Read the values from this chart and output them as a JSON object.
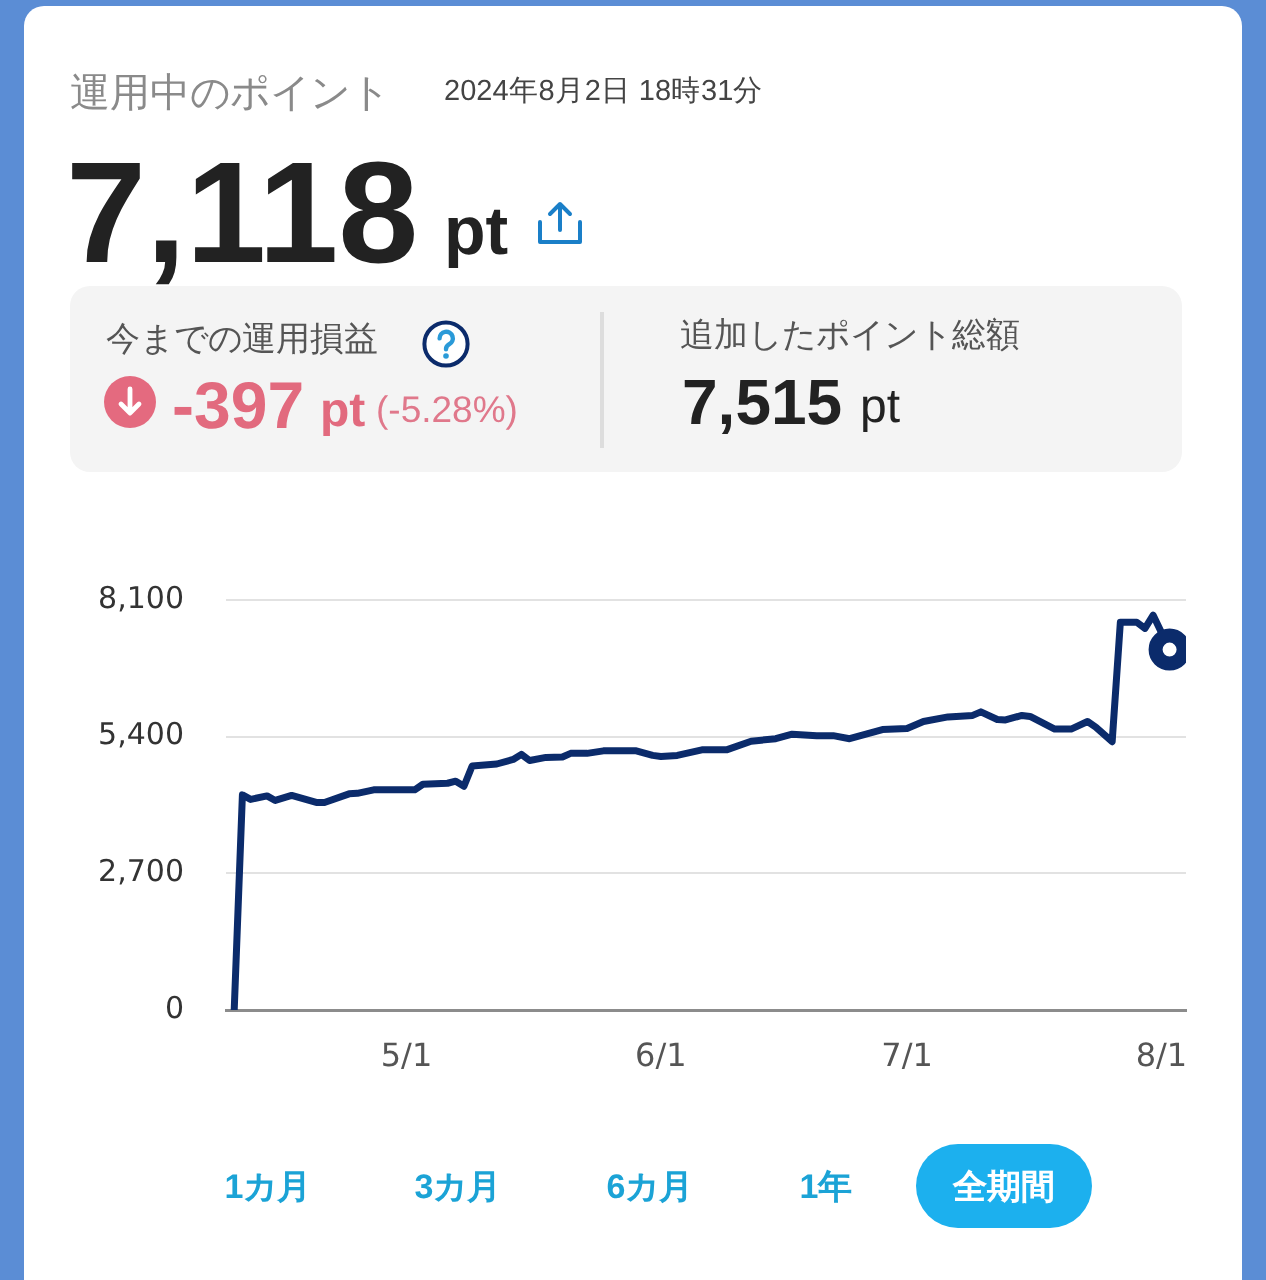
{
  "chart_data": {
    "type": "line",
    "title": "運用中のポイント",
    "subtitle": "2024年8月2日 18時31分",
    "annotations": [
      "7,118",
      "pt",
      "今までの運用損益",
      "-397",
      "pt",
      "(-5.28%)",
      "追加したポイント総額",
      "7,515",
      "pt",
      "1カ月",
      "3カ月",
      "6カ月",
      "1年",
      "全期間"
    ],
    "xlim": [
      "--04-09",
      "--08-04"
    ],
    "xticks": [
      {
        "value": "--05-01",
        "label": "5/1"
      },
      {
        "value": "--06-01",
        "label": "6/1"
      },
      {
        "value": "--07-01",
        "label": "7/1"
      },
      {
        "value": "--08-01",
        "label": "8/1"
      }
    ],
    "ylim": [
      0,
      8100
    ],
    "yticks": [
      0,
      {
        "value": 2700,
        "label": "2,700"
      },
      {
        "value": 5400,
        "label": "5,400"
      },
      {
        "value": 8100,
        "label": "8,100"
      }
    ],
    "grid": "y",
    "marker": "none",
    "line_style": "solid",
    "series": [
      {
        "color": "#0b2b6b",
        "x": [
          "--04-10",
          "--04-11",
          "--04-12",
          "--04-14",
          "--04-15",
          "--04-17",
          "--04-20",
          "--04-21",
          "--04-24",
          "--04-25",
          "--04-27",
          "--05-02",
          "--05-03",
          "--05-06",
          "--05-07",
          "--05-08",
          "--05-09",
          "--05-12",
          "--05-14",
          "--05-15",
          "--05-16",
          "--05-18",
          "--05-20",
          "--05-21",
          "--05-23",
          "--05-25",
          "--05-29",
          "--05-31",
          "--06-01",
          "--06-03",
          "--06-06",
          "--06-09",
          "--06-12",
          "--06-15",
          "--06-17",
          "--06-20",
          "--06-22",
          "--06-24",
          "--06-28",
          "--07-01",
          "--07-03",
          "--07-06",
          "--07-09",
          "--07-10",
          "--07-12",
          "--07-13",
          "--07-15",
          "--07-16",
          "--07-19",
          "--07-21",
          "--07-23",
          "--07-24",
          "--07-26",
          "--07-27",
          "--07-29",
          "--07-30",
          "--07-31",
          "--08-02"
        ],
        "values": [
          0,
          4250,
          4160,
          4230,
          4140,
          4240,
          4100,
          4100,
          4270,
          4280,
          4350,
          4350,
          4460,
          4480,
          4520,
          4420,
          4820,
          4860,
          4950,
          5050,
          4930,
          4990,
          5000,
          5070,
          5070,
          5120,
          5120,
          5030,
          5010,
          5030,
          5140,
          5140,
          5310,
          5360,
          5450,
          5420,
          5420,
          5360,
          5540,
          5560,
          5700,
          5790,
          5820,
          5890,
          5740,
          5730,
          5820,
          5800,
          5550,
          5550,
          5700,
          5590,
          5300,
          7660,
          7660,
          7540,
          7800,
          7120
        ]
      },
      {
        "type": "scatter",
        "color": "#0b2b6b",
        "marker": "circle",
        "x": [
          "--08-02"
        ],
        "values": [
          7120
        ]
      }
    ]
  }
}
